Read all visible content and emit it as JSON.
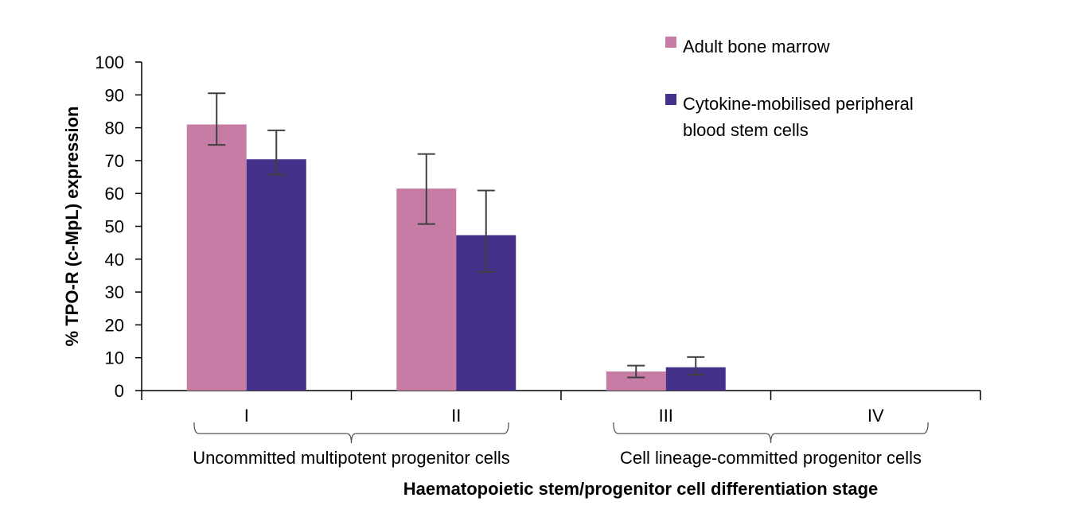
{
  "chart_data": {
    "type": "bar",
    "title": "",
    "xlabel": "Haematopoietic stem/progenitor cell differentiation stage",
    "ylabel": "% TPO-R (c-MpL) expression",
    "ylim": [
      0,
      100
    ],
    "yticks": [
      0,
      10,
      20,
      30,
      40,
      50,
      60,
      70,
      80,
      90,
      100
    ],
    "categories": [
      "I",
      "II",
      "III",
      "IV"
    ],
    "category_groups": [
      {
        "label": "Uncommitted multipotent progenitor cells",
        "categories": [
          "I",
          "II"
        ]
      },
      {
        "label": "Cell lineage-committed progenitor cells",
        "categories": [
          "III",
          "IV"
        ]
      }
    ],
    "series": [
      {
        "name": "Adult bone marrow",
        "color": "#C67CA5",
        "values": [
          81,
          61.5,
          5.8,
          null
        ],
        "error_low": [
          74.8,
          50.7,
          4.0,
          null
        ],
        "error_high": [
          90.5,
          72.0,
          7.6,
          null
        ]
      },
      {
        "name": "Cytokine-mobilised peripheral blood stem cells",
        "color": "#46318A",
        "values": [
          70.4,
          47.3,
          7.1,
          null
        ],
        "error_low": [
          65.7,
          36.1,
          4.8,
          null
        ],
        "error_high": [
          79.2,
          60.9,
          10.2,
          null
        ]
      }
    ],
    "legend_position": "top-right",
    "grid": false,
    "error_bars": true,
    "error_bar_color": "#404040",
    "axis_color": "#000000"
  }
}
